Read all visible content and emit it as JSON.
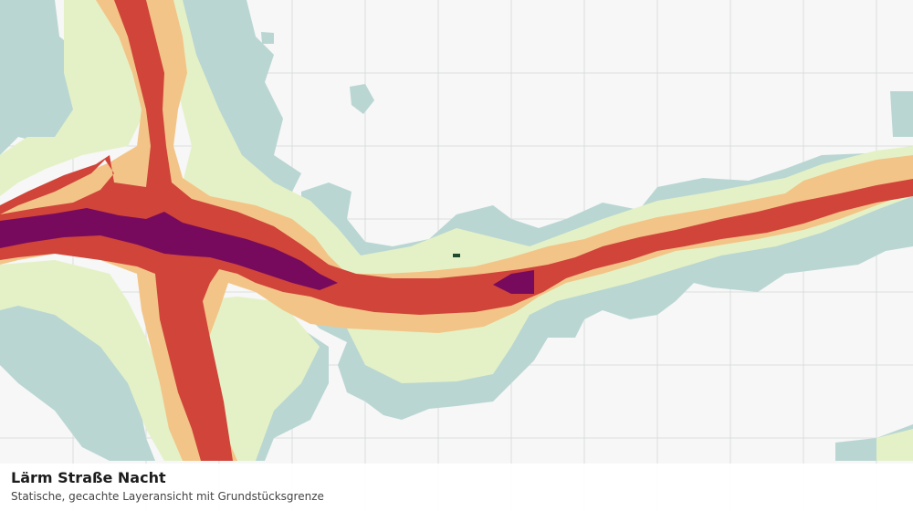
{
  "map": {
    "title": "Lärm Straße Nacht",
    "subtitle": "Statische, gecachte Layeransicht mit Grundstücksgrenze",
    "colors": {
      "background": "#f6f7f6",
      "grid": "#dcdedd",
      "band_outer": "#b9d6d3",
      "band_light": "#e4f1c6",
      "band_orange": "#f3c487",
      "band_red": "#d0443a",
      "band_purple": "#770a5c",
      "marker": "#1f4b2c"
    }
  }
}
